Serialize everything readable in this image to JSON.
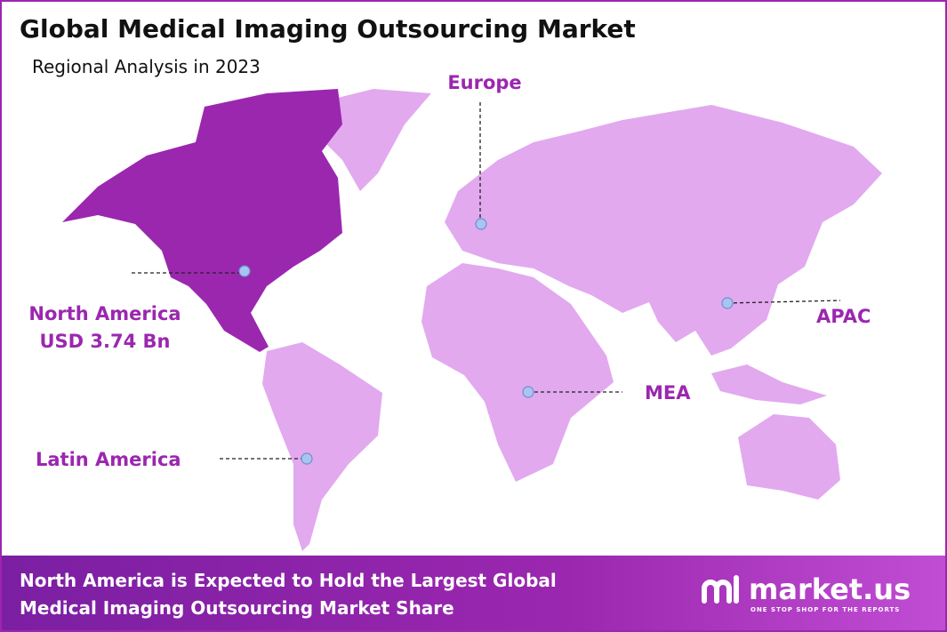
{
  "header": {
    "title": "Global Medical Imaging Outsourcing Market",
    "subtitle": "Regional Analysis in 2023"
  },
  "regions": [
    {
      "label": "North America",
      "value": "USD 3.74 Bn"
    },
    {
      "label": "Europe"
    },
    {
      "label": "APAC"
    },
    {
      "label": "MEA"
    },
    {
      "label": "Latin America"
    }
  ],
  "footer": {
    "lines": [
      "North America is Expected to Hold the Largest Global",
      "Medical Imaging Outsourcing Market Share"
    ]
  },
  "logo": {
    "name": "market.us",
    "tagline": "ONE STOP SHOP FOR THE REPORTS"
  }
}
